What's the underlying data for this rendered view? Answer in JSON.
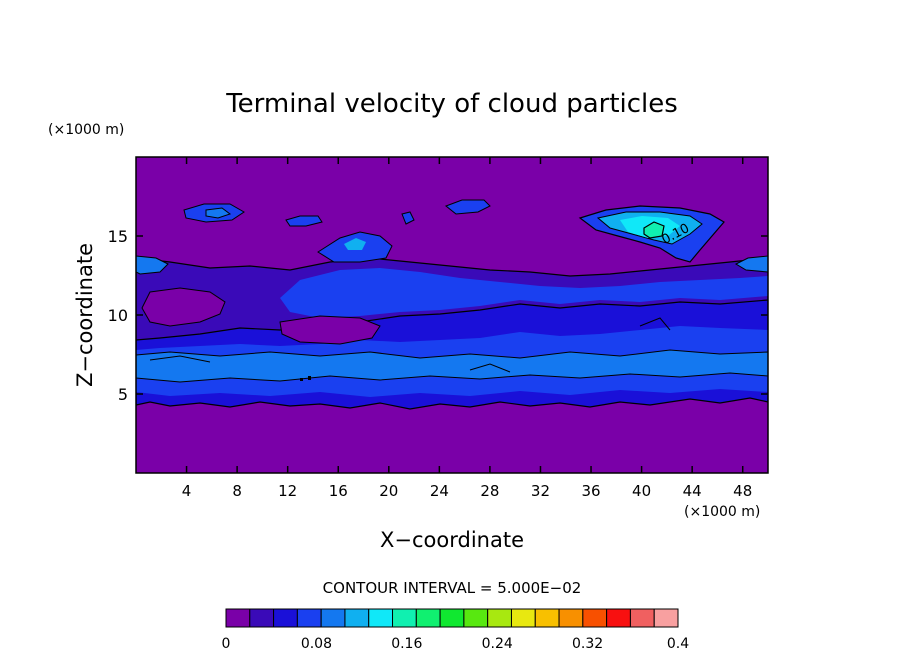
{
  "chart_data": {
    "type": "heatmap",
    "title": "Terminal velocity of cloud particles",
    "xlabel": "X−coordinate",
    "ylabel": "Z−coordinate",
    "x_unit": "(×1000 m)",
    "y_unit": "(×1000 m)",
    "xlim": [
      0,
      50
    ],
    "ylim": [
      0,
      20
    ],
    "x_ticks": [
      4,
      8,
      12,
      16,
      20,
      24,
      28,
      32,
      36,
      40,
      44,
      48
    ],
    "y_ticks": [
      5,
      10,
      15
    ],
    "contour_label": "0.10",
    "contour_interval_label": "CONTOUR INTERVAL = 5.000E−02",
    "colorbar": {
      "ticks": [
        0,
        0.08,
        0.16,
        0.24,
        0.32,
        0.4
      ],
      "tick_labels": [
        "0",
        "0.08",
        "0.16",
        "0.24",
        "0.32",
        "0.4"
      ],
      "levels": [
        0,
        0.025,
        0.05,
        0.075,
        0.1,
        0.125,
        0.15,
        0.175,
        0.2,
        0.225,
        0.25,
        0.275,
        0.3,
        0.325,
        0.35,
        0.375,
        0.4
      ],
      "colors": [
        "#7a00a8",
        "#3a0ab8",
        "#1a10d8",
        "#1a40f0",
        "#1478f0",
        "#10b0f0",
        "#10e8f8",
        "#10f0b0",
        "#10f070",
        "#10e830",
        "#58e810",
        "#a8e810",
        "#e8e810",
        "#f8c000",
        "#f89000",
        "#f85000",
        "#f81010",
        "#f06060",
        "#f8a0a0"
      ]
    },
    "background_color": "#7a00a8"
  }
}
